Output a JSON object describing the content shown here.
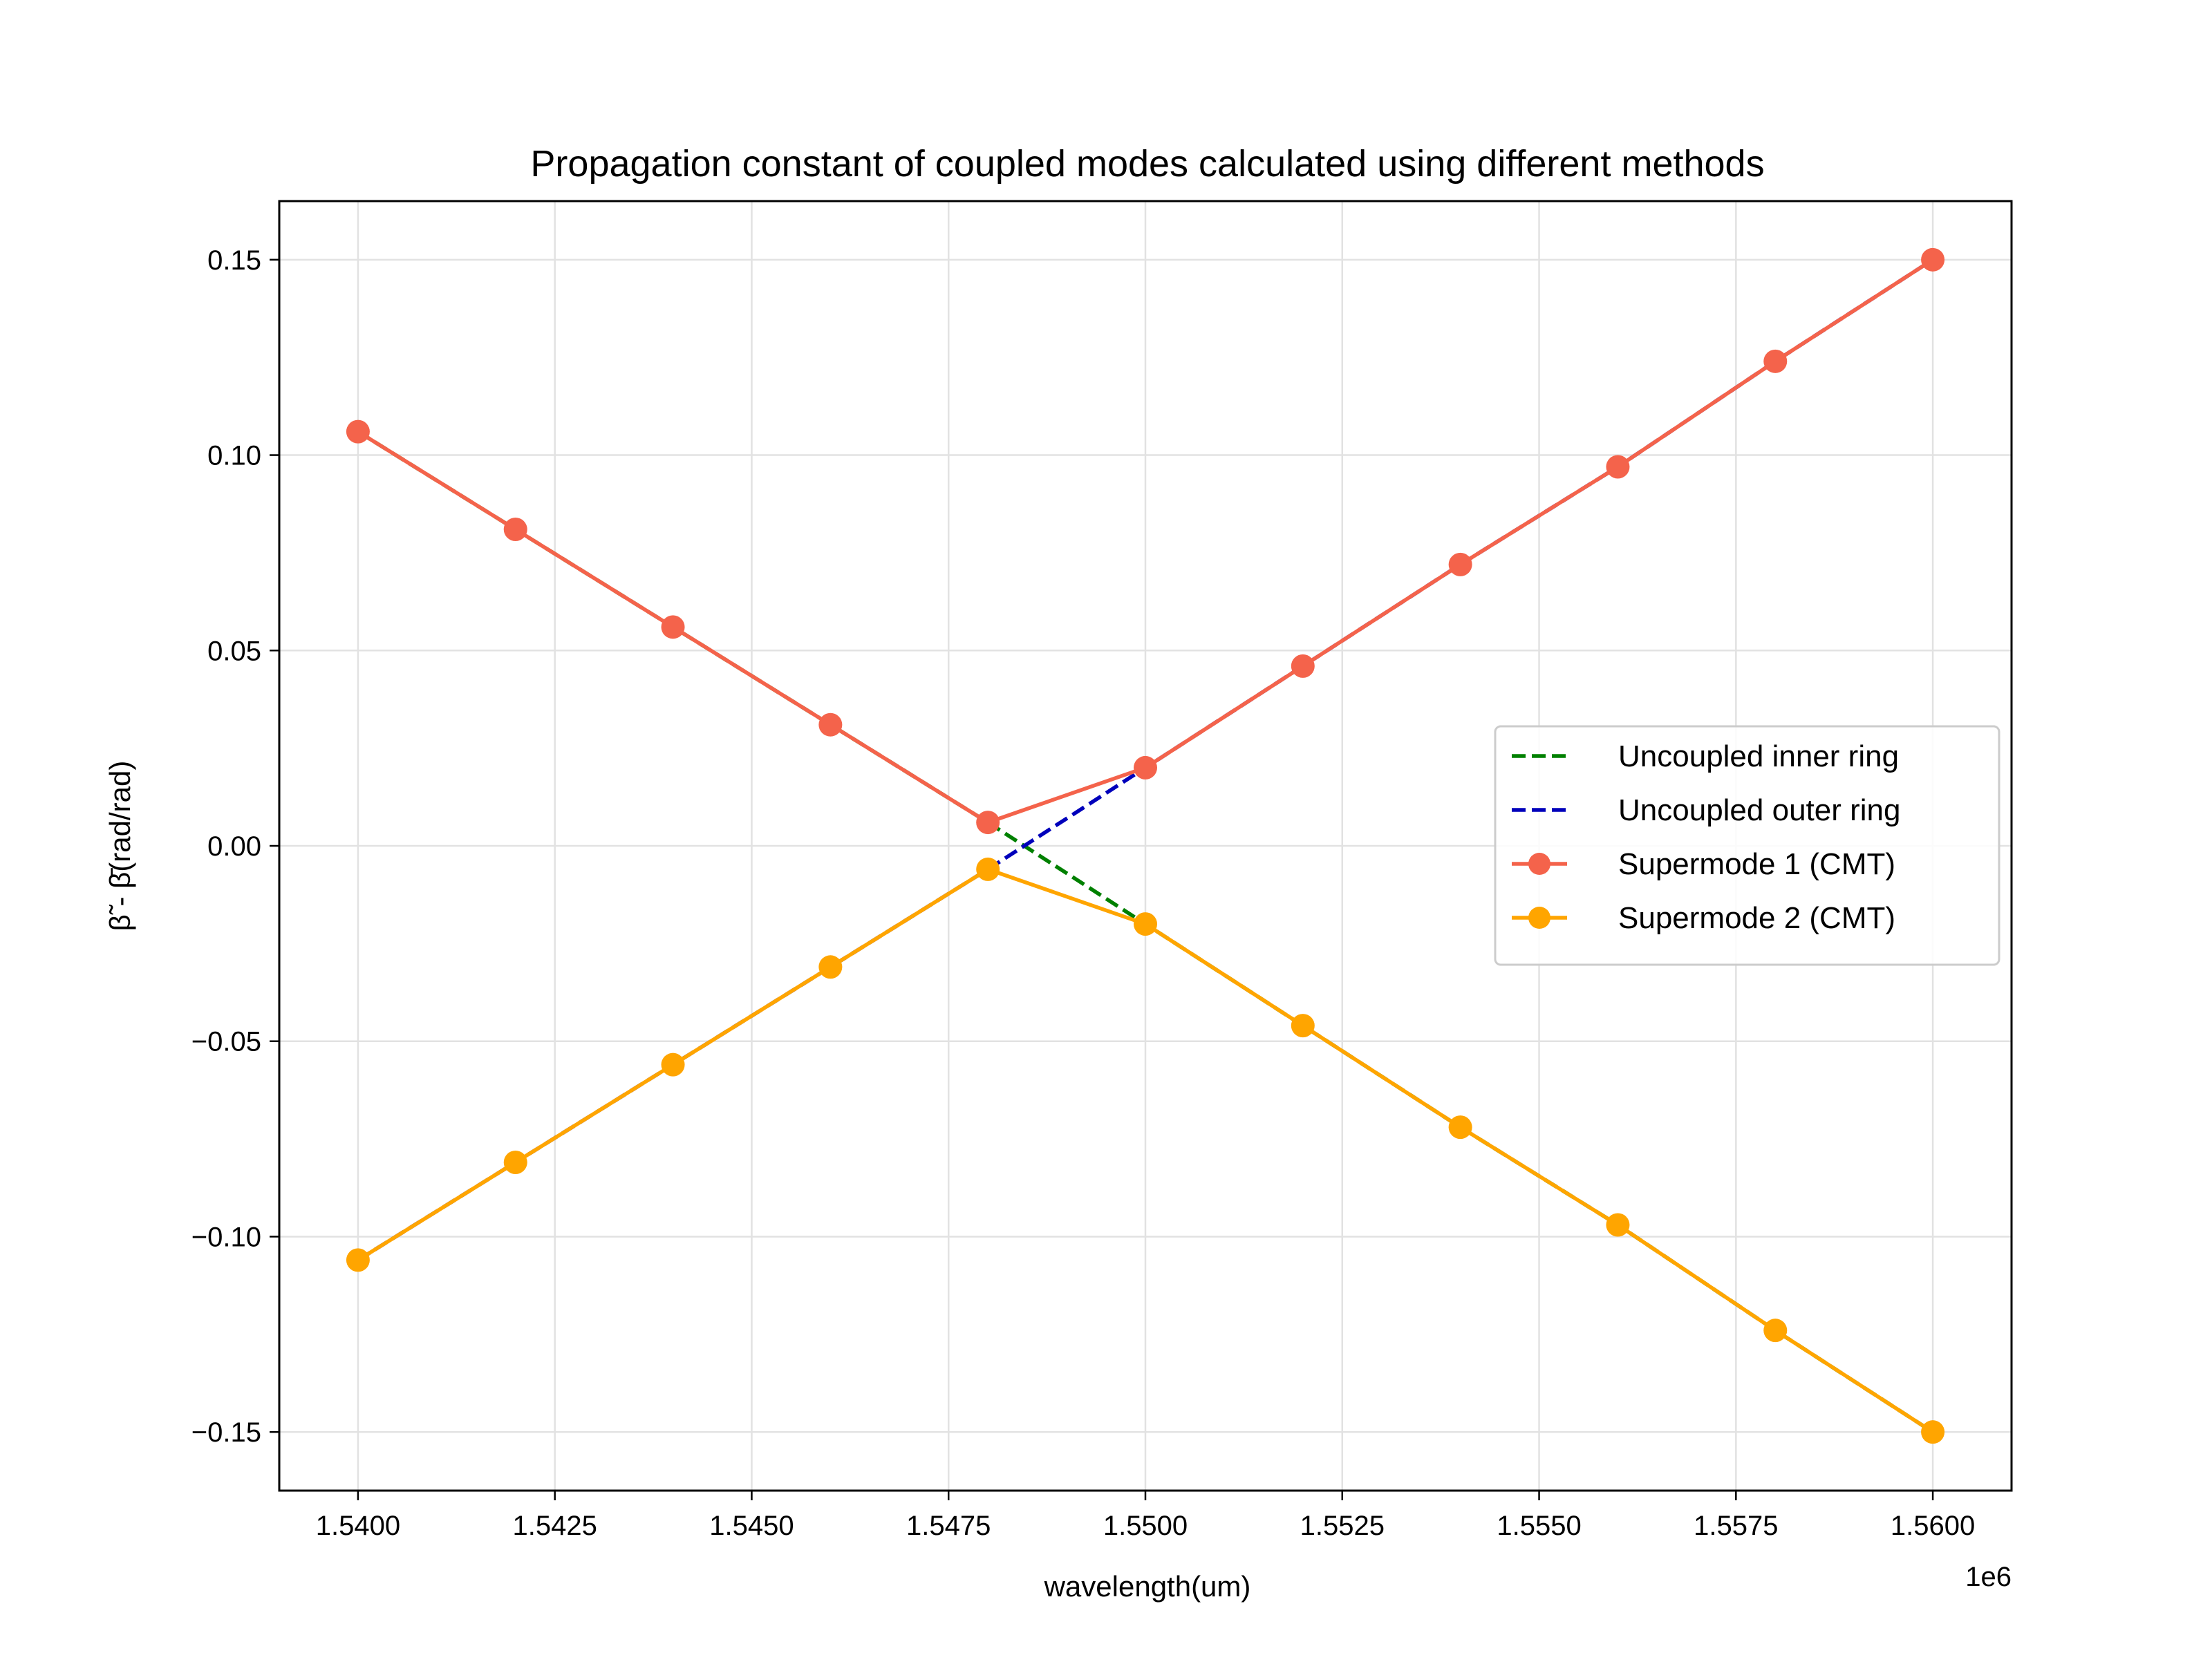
{
  "chart_data": {
    "type": "line",
    "title": "Propagation constant of coupled modes calculated using different methods",
    "xlabel": "wavelength(um)",
    "ylabel": "β̃ - β̄(rad/rad)",
    "x_offset_label": "1e6",
    "xlim": [
      1.539,
      1.561
    ],
    "ylim": [
      -0.165,
      0.165
    ],
    "grid": true,
    "legend_position": "center-right",
    "x_ticks": [
      1.54,
      1.5425,
      1.545,
      1.5475,
      1.55,
      1.5525,
      1.555,
      1.5575,
      1.56
    ],
    "x_tick_labels": [
      "1.5400",
      "1.5425",
      "1.5450",
      "1.5475",
      "1.5500",
      "1.5525",
      "1.5550",
      "1.5575",
      "1.5600"
    ],
    "y_ticks": [
      -0.15,
      -0.1,
      -0.05,
      0.0,
      0.05,
      0.1,
      0.15
    ],
    "y_tick_labels": [
      "−0.15",
      "−0.10",
      "−0.05",
      "0.00",
      "0.05",
      "0.10",
      "0.15"
    ],
    "x": [
      1.54,
      1.542,
      1.544,
      1.546,
      1.548,
      1.55,
      1.552,
      1.554,
      1.556,
      1.558,
      1.56
    ],
    "series": [
      {
        "name": "Uncoupled inner ring",
        "color": "#008000",
        "style": "dashed",
        "marker": false,
        "values": [
          0.106,
          0.081,
          0.056,
          0.031,
          0.006,
          -0.02,
          -0.046,
          -0.072,
          -0.097,
          -0.124,
          -0.15
        ]
      },
      {
        "name": "Uncoupled outer ring",
        "color": "#0000bb",
        "style": "dashed",
        "marker": false,
        "values": [
          -0.106,
          -0.081,
          -0.056,
          -0.031,
          -0.006,
          0.02,
          0.046,
          0.072,
          0.097,
          0.124,
          0.15
        ]
      },
      {
        "name": "Supermode 1 (CMT)",
        "color": "#f4634b",
        "style": "solid",
        "marker": true,
        "values": [
          0.106,
          0.081,
          0.056,
          0.031,
          0.006,
          0.02,
          0.046,
          0.072,
          0.097,
          0.124,
          0.15
        ]
      },
      {
        "name": "Supermode 2 (CMT)",
        "color": "#ffa500",
        "style": "solid",
        "marker": true,
        "values": [
          -0.106,
          -0.081,
          -0.056,
          -0.031,
          -0.006,
          -0.02,
          -0.046,
          -0.072,
          -0.097,
          -0.124,
          -0.15
        ]
      }
    ]
  }
}
